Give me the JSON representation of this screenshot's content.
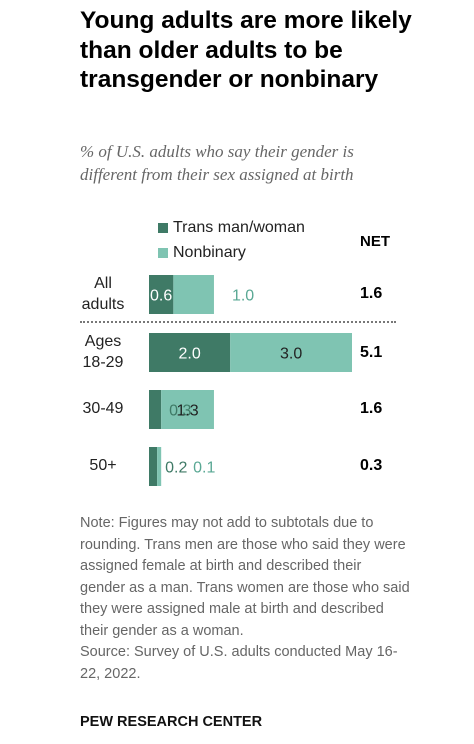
{
  "title": "Young adults are more likely than older adults to be transgender or nonbinary",
  "subtitle": "% of U.S. adults who say their gender is different from their sex assigned at birth",
  "colors": {
    "trans": "#3f7a66",
    "nonbinary": "#7fc4b2",
    "nonbinary_label": "#5aa894"
  },
  "net_header": "NET",
  "note": "Note: Figures may not add to subtotals due to rounding. Trans men are those who said they were assigned female at birth and described their gender as a man. Trans women are those who said they were assigned male at birth and described their gender as a woman.",
  "source": "Source: Survey of U.S. adults conducted May 16-22, 2022.",
  "source_name": "PEW RESEARCH CENTER",
  "chart_data": {
    "type": "bar",
    "orientation": "horizontal",
    "stacked": true,
    "categories": [
      "All adults",
      "Ages 18-29",
      "30-49",
      "50+"
    ],
    "series": [
      {
        "name": "Trans man/woman",
        "values": [
          0.6,
          2.0,
          0.3,
          0.2
        ]
      },
      {
        "name": "Nonbinary",
        "values": [
          1.0,
          3.0,
          1.3,
          0.1
        ]
      }
    ],
    "net": [
      "1.6",
      "5.1",
      "1.6",
      "0.3"
    ],
    "value_labels": [
      [
        "0.6",
        "1.0"
      ],
      [
        "2.0",
        "3.0"
      ],
      [
        "0.3",
        "1.3"
      ],
      [
        "0.2",
        "0.1"
      ]
    ],
    "row_labels": [
      [
        "All",
        "adults"
      ],
      [
        "Ages",
        "18-29"
      ],
      [
        "30-49"
      ],
      [
        "50+"
      ]
    ],
    "legend_position": "top"
  }
}
